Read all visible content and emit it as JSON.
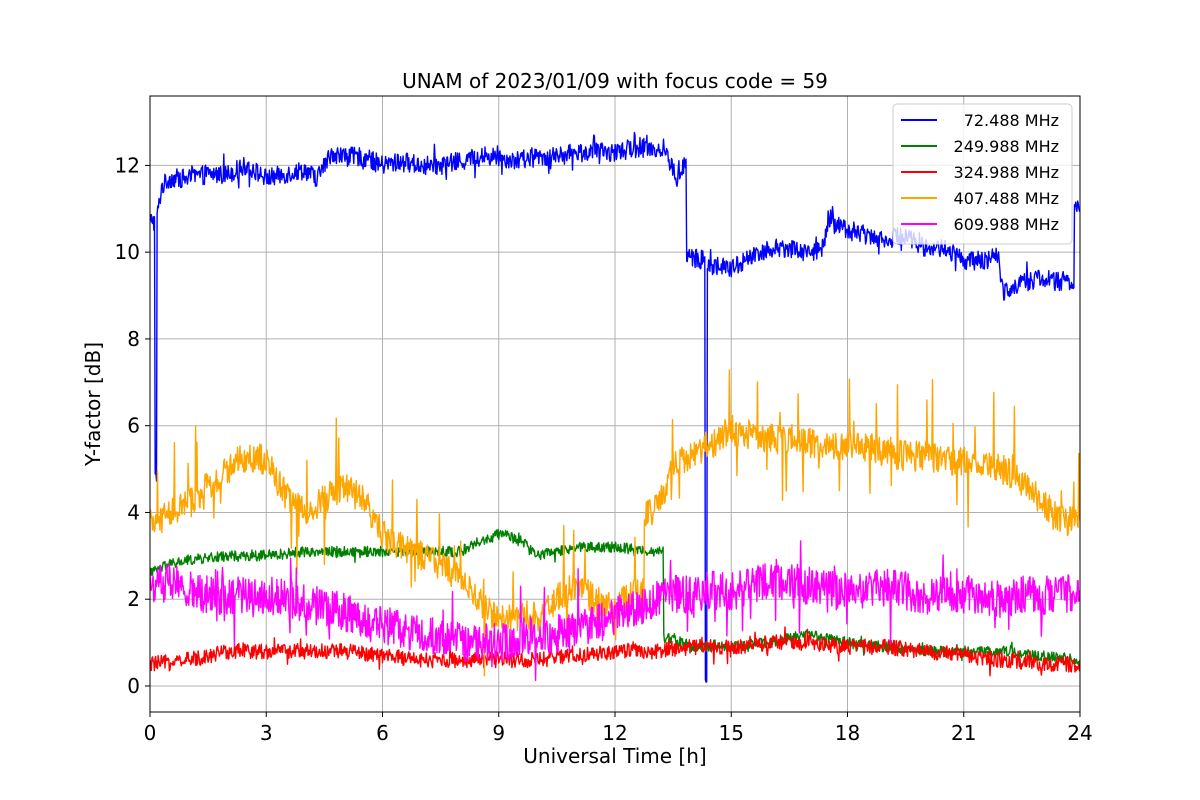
{
  "chart_data": {
    "type": "line",
    "title": "UNAM of 2023/01/09 with focus code = 59",
    "xlabel": "Universal Time [h]",
    "ylabel": "Y-factor [dB]",
    "xlim": [
      0,
      24
    ],
    "ylim": [
      -0.6,
      13.6
    ],
    "xticks": [
      0,
      3,
      6,
      9,
      12,
      15,
      18,
      21,
      24
    ],
    "yticks": [
      0,
      2,
      4,
      6,
      8,
      10,
      12
    ],
    "grid": true,
    "legend_position": "top-right",
    "series": [
      {
        "name": "72.488 MHz",
        "color": "#0000ff",
        "x": [
          0,
          0.05,
          0.1,
          0.15,
          0.2,
          0.3,
          0.5,
          1,
          1.5,
          2,
          2.5,
          3,
          3.5,
          4,
          4.3,
          4.5,
          4.7,
          5,
          5.5,
          6,
          6.5,
          7,
          7.5,
          8,
          8.5,
          9,
          9.5,
          10,
          10.5,
          11,
          11.5,
          12,
          12.5,
          13,
          13.3,
          13.6,
          13.8,
          13.9,
          14,
          14.2,
          14.3,
          14.35,
          14.4,
          14.6,
          15,
          15.5,
          16,
          16.5,
          17,
          17.4,
          17.5,
          18,
          18.5,
          19,
          19.5,
          20,
          20.5,
          21,
          21.5,
          21.9,
          22,
          22.5,
          23,
          23.5,
          23.7,
          24
        ],
        "y": [
          10.6,
          10.8,
          10.7,
          4.8,
          10.9,
          11.5,
          11.7,
          11.7,
          11.8,
          11.8,
          12.0,
          11.7,
          11.8,
          11.9,
          11.7,
          12.0,
          12.3,
          12.2,
          12.2,
          12.0,
          12.1,
          12.0,
          12.0,
          12.1,
          12.2,
          12.2,
          12.1,
          12.2,
          12.2,
          12.3,
          12.3,
          12.3,
          12.4,
          12.4,
          12.3,
          11.7,
          12.0,
          9.9,
          9.9,
          9.8,
          9.9,
          0.0,
          9.7,
          9.7,
          9.6,
          9.9,
          10.1,
          10.1,
          10.0,
          10.1,
          10.8,
          10.5,
          10.4,
          10.3,
          10.4,
          10.1,
          10.1,
          9.8,
          9.8,
          9.9,
          9.1,
          9.3,
          9.4,
          9.3,
          9.3,
          11.0
        ]
      },
      {
        "name": "249.988 MHz",
        "color": "#008000",
        "x": [
          0,
          0.5,
          1,
          2,
          3,
          4,
          5,
          6,
          7,
          8,
          8.5,
          9,
          9.5,
          10,
          11,
          12,
          13,
          13.5,
          14,
          15,
          16,
          17,
          18,
          19,
          20,
          21,
          22,
          23,
          24
        ],
        "y": [
          2.6,
          2.8,
          2.9,
          3.0,
          3.0,
          3.1,
          3.1,
          3.1,
          3.1,
          3.1,
          3.3,
          3.5,
          3.4,
          3.0,
          3.2,
          3.2,
          3.1,
          1.1,
          0.9,
          0.9,
          1.0,
          1.2,
          1.0,
          0.9,
          0.8,
          0.8,
          0.8,
          0.7,
          0.6
        ]
      },
      {
        "name": "324.988 MHz",
        "color": "#ff0000",
        "x": [
          0,
          1,
          2,
          3,
          4,
          5,
          6,
          7,
          8,
          9,
          10,
          11,
          12,
          13,
          14,
          15,
          16,
          17,
          18,
          19,
          20,
          21,
          22,
          23,
          24
        ],
        "y": [
          0.5,
          0.6,
          0.8,
          0.8,
          0.8,
          0.8,
          0.7,
          0.6,
          0.6,
          0.6,
          0.6,
          0.7,
          0.8,
          0.8,
          0.9,
          0.9,
          1.0,
          1.0,
          0.9,
          0.9,
          0.8,
          0.7,
          0.6,
          0.5,
          0.5
        ]
      },
      {
        "name": "407.488 MHz",
        "color": "#ffa500",
        "x": [
          0,
          0.5,
          1,
          1.5,
          2,
          2.5,
          3,
          3.5,
          4,
          4.5,
          5,
          5.5,
          6,
          6.5,
          7,
          7.5,
          8,
          8.5,
          9,
          9.5,
          10,
          10.5,
          11,
          11.5,
          12,
          12.5,
          13,
          13.5,
          14,
          14.5,
          15,
          15.5,
          16,
          16.5,
          17,
          17.5,
          18,
          18.5,
          19,
          19.5,
          20,
          20.5,
          21,
          21.5,
          22,
          22.5,
          23,
          23.5,
          24
        ],
        "y": [
          3.7,
          4.0,
          4.2,
          4.6,
          5.0,
          5.3,
          5.2,
          4.4,
          4.0,
          4.3,
          4.6,
          4.3,
          3.5,
          3.2,
          3.0,
          2.8,
          2.5,
          1.9,
          1.5,
          1.6,
          1.6,
          2.0,
          2.3,
          2.0,
          1.8,
          2.2,
          4.0,
          5.0,
          5.4,
          5.6,
          5.9,
          5.8,
          5.7,
          5.7,
          5.6,
          5.5,
          5.6,
          5.5,
          5.4,
          5.3,
          5.3,
          5.2,
          5.2,
          5.1,
          5.0,
          4.7,
          4.3,
          3.8,
          3.8
        ]
      },
      {
        "name": "609.988 MHz",
        "color": "#ff00ff",
        "x": [
          0,
          0.5,
          1,
          1.5,
          2,
          2.5,
          3,
          3.5,
          4,
          4.5,
          5,
          5.5,
          6,
          6.5,
          7,
          7.5,
          8,
          8.5,
          9,
          9.5,
          10,
          10.5,
          11,
          11.5,
          12,
          12.5,
          13,
          13.5,
          14,
          14.5,
          15,
          15.5,
          16,
          16.5,
          17,
          17.5,
          18,
          18.5,
          19,
          19.5,
          20,
          20.5,
          21,
          21.5,
          22,
          22.5,
          23,
          23.5,
          24
        ],
        "y": [
          2.3,
          2.4,
          2.2,
          2.1,
          2.1,
          2.1,
          2.1,
          2.0,
          1.9,
          1.8,
          1.7,
          1.5,
          1.4,
          1.3,
          1.2,
          1.1,
          1.0,
          1.0,
          1.0,
          1.1,
          1.2,
          1.2,
          1.3,
          1.4,
          1.6,
          1.8,
          2.0,
          2.1,
          2.1,
          2.2,
          2.2,
          2.3,
          2.4,
          2.4,
          2.3,
          2.2,
          2.2,
          2.2,
          2.3,
          2.2,
          2.1,
          2.1,
          2.1,
          2.1,
          2.0,
          2.1,
          2.1,
          2.1,
          2.2
        ]
      }
    ]
  }
}
